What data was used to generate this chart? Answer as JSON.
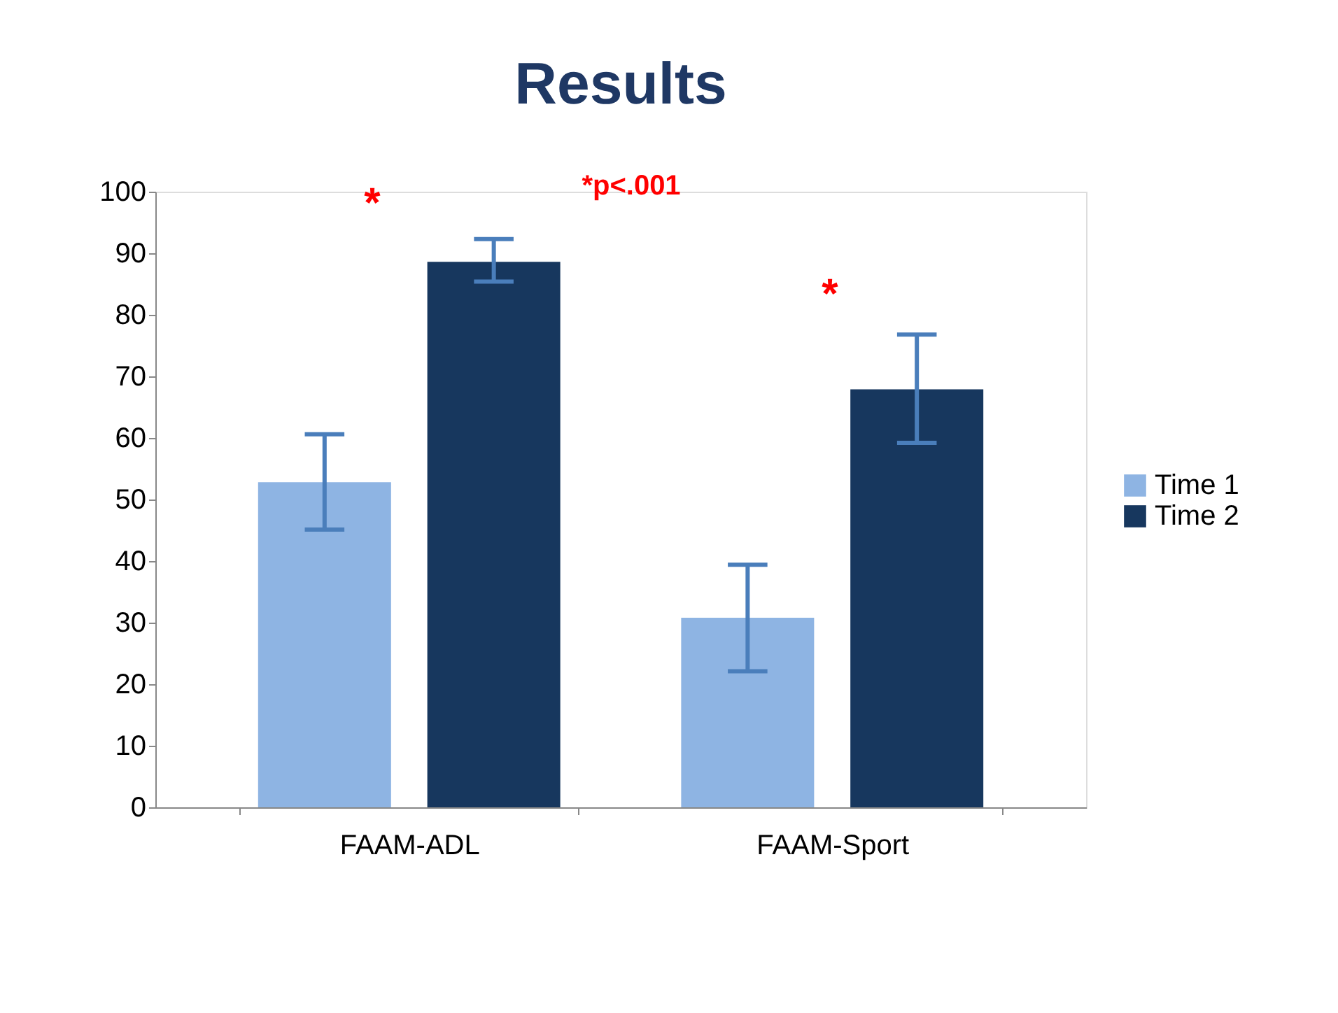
{
  "chart_data": {
    "type": "bar",
    "title": "Results",
    "categories": [
      "FAAM-ADL",
      "FAAM-Sport"
    ],
    "series": [
      {
        "name": "Time 1",
        "color": "#8eb4e3",
        "values": [
          52.8,
          30.8
        ],
        "errors": [
          [
            45.1,
            60.6
          ],
          [
            22.1,
            39.4
          ]
        ]
      },
      {
        "name": "Time 2",
        "color": "#17375e",
        "values": [
          88.6,
          67.9
        ],
        "errors": [
          [
            85.4,
            92.3
          ],
          [
            59.2,
            76.8
          ]
        ]
      }
    ],
    "ylim": [
      0,
      100
    ],
    "yticks": [
      0,
      10,
      20,
      30,
      40,
      50,
      60,
      70,
      80,
      90,
      100
    ],
    "grid": false,
    "legend": "right",
    "annotations": [
      "*",
      "*",
      "*p<.001"
    ]
  }
}
